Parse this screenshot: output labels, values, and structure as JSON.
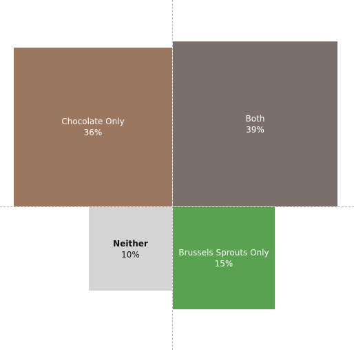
{
  "chart_data": {
    "type": "quadrant",
    "title": "",
    "xlabel": "",
    "ylabel": "",
    "grid": false,
    "cells": [
      {
        "label": "Chocolate Only",
        "value": 36,
        "value_label": "36%",
        "quadrant": "top-left",
        "color": "#9c7760",
        "text_color": "#ffffff"
      },
      {
        "label": "Both",
        "value": 39,
        "value_label": "39%",
        "quadrant": "top-right",
        "color": "#7a6f6b",
        "text_color": "#ffffff"
      },
      {
        "label": "Neither",
        "value": 10,
        "value_label": "10%",
        "quadrant": "bottom-left",
        "color": "#d4d4d4",
        "text_color": "#111111"
      },
      {
        "label": "Brussels Sprouts Only",
        "value": 15,
        "value_label": "15%",
        "quadrant": "bottom-right",
        "color": "#5aa152",
        "text_color": "#ffffff"
      }
    ]
  }
}
